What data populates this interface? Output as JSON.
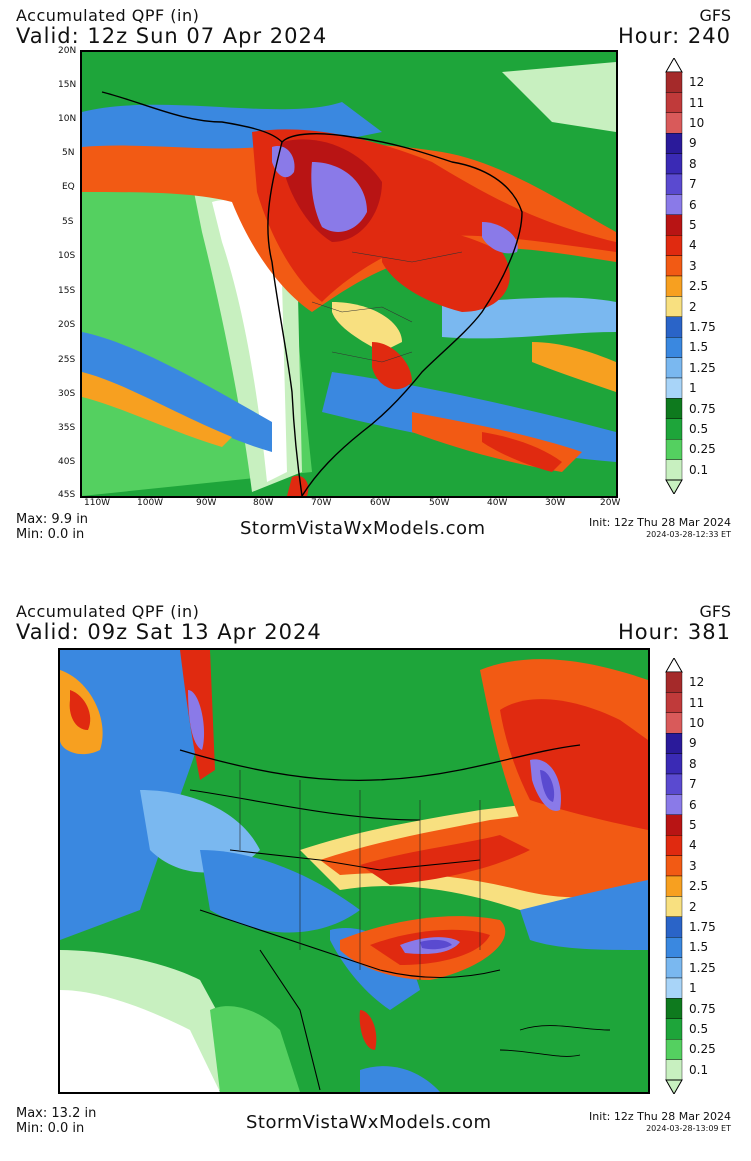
{
  "panels": [
    {
      "title": "Accumulated QPF (in)",
      "model": "GFS",
      "valid": "Valid: 12z Sun 07 Apr 2024",
      "hour": "Hour: 240",
      "max": "Max: 9.9 in",
      "min": "Min: 0.0 in",
      "brand": "StormVistaWxModels.com",
      "init": "Init: 12z Thu 28 Mar 2024",
      "stamp": "2024-03-28-12:33 ET",
      "lat_labels": [
        "20N",
        "15N",
        "10N",
        "5N",
        "EQ",
        "5S",
        "10S",
        "15S",
        "20S",
        "25S",
        "30S",
        "35S",
        "40S",
        "45S"
      ],
      "lon_labels": [
        "110W",
        "100W",
        "90W",
        "80W",
        "70W",
        "60W",
        "50W",
        "40W",
        "30W",
        "20W"
      ]
    },
    {
      "title": "Accumulated QPF (in)",
      "model": "GFS",
      "valid": "Valid: 09z Sat 13 Apr 2024",
      "hour": "Hour: 381",
      "max": "Max: 13.2 in",
      "min": "Min: 0.0 in",
      "brand": "StormVistaWxModels.com",
      "init": "Init: 12z Thu 28 Mar 2024",
      "stamp": "2024-03-28-13:09 ET"
    }
  ],
  "legend": {
    "levels": [
      {
        "label": "12",
        "color": "#a52a2a"
      },
      {
        "label": "11",
        "color": "#c03a3a"
      },
      {
        "label": "10",
        "color": "#d95a5a"
      },
      {
        "label": "9",
        "color": "#2a1a9a"
      },
      {
        "label": "8",
        "color": "#3a2ab5"
      },
      {
        "label": "7",
        "color": "#5a4ad0"
      },
      {
        "label": "6",
        "color": "#8a7ae8"
      },
      {
        "label": "5",
        "color": "#b81414"
      },
      {
        "label": "4",
        "color": "#e02a10"
      },
      {
        "label": "3",
        "color": "#f25a14"
      },
      {
        "label": "2.5",
        "color": "#f7a020"
      },
      {
        "label": "2",
        "color": "#f8e080"
      },
      {
        "label": "1.75",
        "color": "#2a64c8"
      },
      {
        "label": "1.5",
        "color": "#3a88e0"
      },
      {
        "label": "1.25",
        "color": "#7ab8f0"
      },
      {
        "label": "1",
        "color": "#a8d4f8"
      },
      {
        "label": "0.75",
        "color": "#0e7a1e"
      },
      {
        "label": "0.5",
        "color": "#1ea53a"
      },
      {
        "label": "0.25",
        "color": "#54d060"
      },
      {
        "label": "0.1",
        "color": "#c8f0c0"
      }
    ]
  },
  "colors": {
    "dry": "#ffffff",
    "light": "#c8f0c0",
    "green_light": "#54d060",
    "green": "#1ea53a",
    "green_dark": "#0e7a1e",
    "blue_pale": "#a8d4f8",
    "blue_light": "#7ab8f0",
    "blue": "#3a88e0",
    "blue_dark": "#2a64c8",
    "yellow": "#f8e080",
    "orange": "#f7a020",
    "orange_red": "#f25a14",
    "red": "#e02a10",
    "red_dark": "#b81414",
    "violet": "#8a7ae8",
    "purple": "#5a4ad0"
  }
}
